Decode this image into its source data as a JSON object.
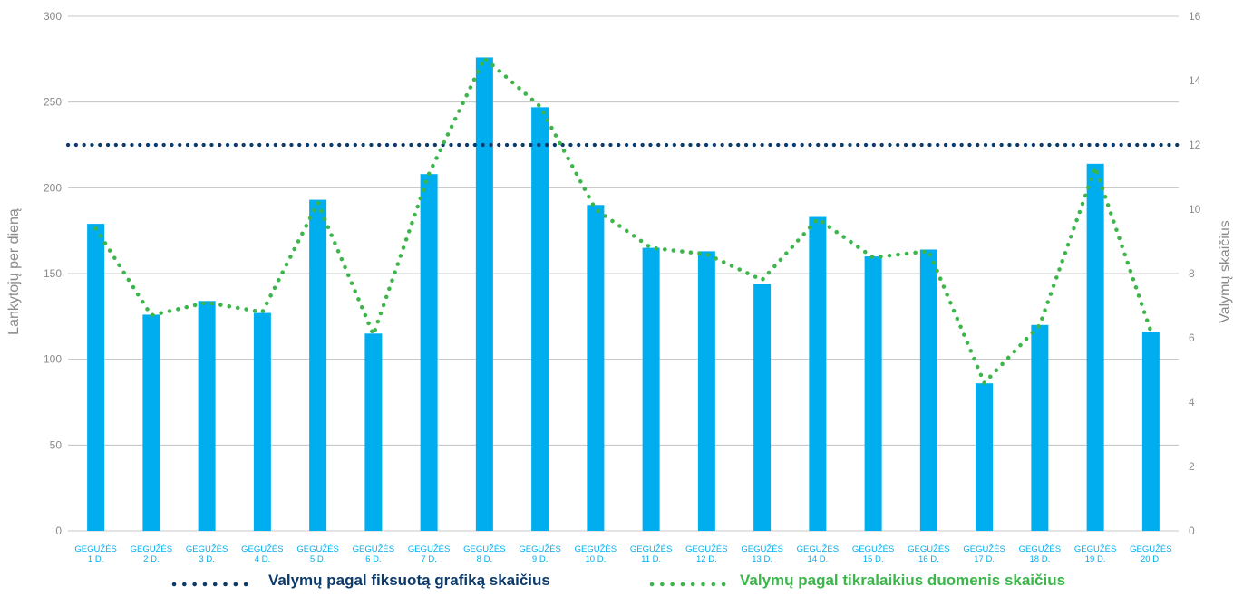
{
  "chart_data": {
    "type": "bar",
    "categories": [
      [
        "GEGUŽĖS",
        "1 D."
      ],
      [
        "GEGUŽĖS",
        "2 D."
      ],
      [
        "GEGUŽĖS",
        "3 D."
      ],
      [
        "GEGUŽĖS",
        "4 D."
      ],
      [
        "GEGUŽĖS",
        "5 D."
      ],
      [
        "GEGUŽĖS",
        "6 D."
      ],
      [
        "GEGUŽĖS",
        "7 D."
      ],
      [
        "GEGUŽĖS",
        "8 D."
      ],
      [
        "GEGUŽĖS",
        "9 D."
      ],
      [
        "GEGUŽĖS",
        "10 D."
      ],
      [
        "GEGUŽĖS",
        "11 D."
      ],
      [
        "GEGUŽĖS",
        "12 D."
      ],
      [
        "GEGUŽĖS",
        "13 D."
      ],
      [
        "GEGUŽĖS",
        "14 D."
      ],
      [
        "GEGUŽĖS",
        "15 D."
      ],
      [
        "GEGUŽĖS",
        "16 D."
      ],
      [
        "GEGUŽĖS",
        "17 D."
      ],
      [
        "GEGUŽĖS",
        "18 D."
      ],
      [
        "GEGUŽĖS",
        "19 D."
      ],
      [
        "GEGUŽĖS",
        "20 D."
      ]
    ],
    "bars": {
      "axis": "left",
      "values": [
        179,
        126,
        134,
        127,
        193,
        115,
        208,
        276,
        247,
        190,
        165,
        163,
        144,
        183,
        160,
        164,
        86,
        120,
        214,
        116
      ],
      "color": "#00aeef"
    },
    "series": [
      {
        "name": "Valymų pagal fiksuotą grafiką skaičius",
        "type": "line",
        "style": "dotted",
        "axis": "right",
        "values": [
          12,
          12,
          12,
          12,
          12,
          12,
          12,
          12,
          12,
          12,
          12,
          12,
          12,
          12,
          12,
          12,
          12,
          12,
          12,
          12
        ],
        "color": "#0b3a6b"
      },
      {
        "name": "Valymų pagal tikralaikius duomenis skaičius",
        "type": "line",
        "style": "dotted",
        "axis": "right",
        "values": [
          9.4,
          6.7,
          7.1,
          6.8,
          10.2,
          6.1,
          11.1,
          14.7,
          13.2,
          10.0,
          8.8,
          8.6,
          7.8,
          9.7,
          8.5,
          8.7,
          4.6,
          6.4,
          11.3,
          6.2
        ],
        "color": "#3cb54a"
      }
    ],
    "ylabel": "Lankytojų per dieną",
    "y2label": "Valymų skaičius",
    "ylim": [
      0,
      300
    ],
    "y2lim": [
      0,
      16
    ],
    "yticks": [
      "0",
      "50",
      "100",
      "150",
      "200",
      "250",
      "300"
    ],
    "y2ticks": [
      "0",
      "2",
      "4",
      "6",
      "8",
      "10",
      "12",
      "14",
      "16"
    ],
    "grid": true,
    "legend_position": "bottom"
  }
}
